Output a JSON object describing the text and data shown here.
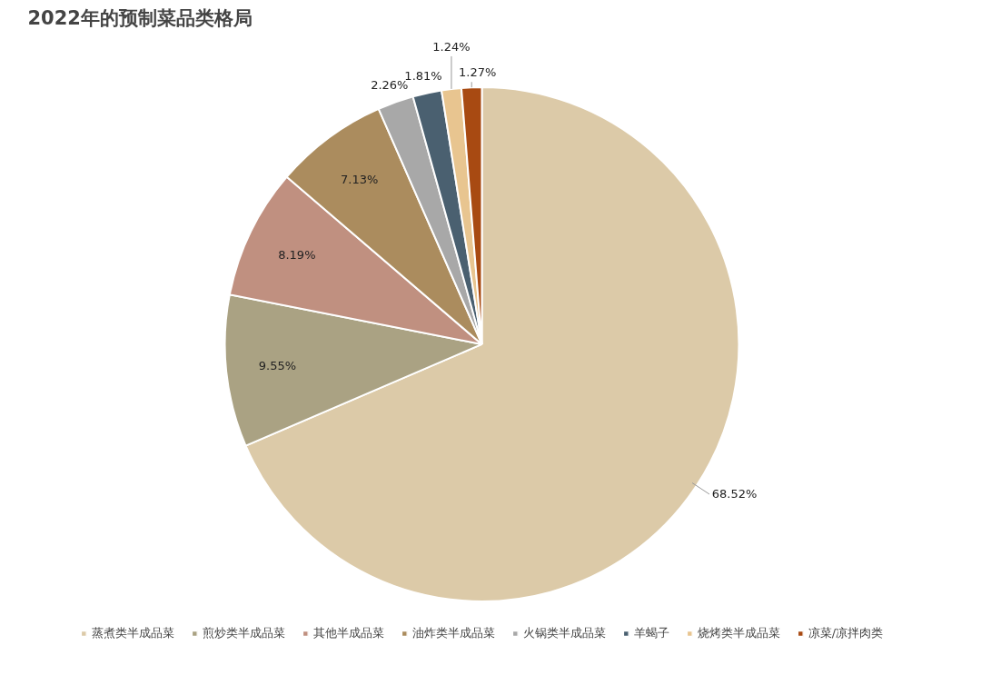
{
  "chart_data": {
    "type": "pie",
    "title": "2022年的预制菜品类格局",
    "categories": [
      "蒸煮类半成品菜",
      "煎炒类半成品菜",
      "其他半成品菜",
      "油炸类半成品菜",
      "火锅类半成品菜",
      "羊蝎子",
      "烧烤类半成品菜",
      "凉菜/凉拌肉类"
    ],
    "values": [
      68.52,
      9.55,
      8.19,
      7.13,
      2.26,
      1.81,
      1.24,
      1.27
    ],
    "colors": [
      "#dccaa8",
      "#aaa283",
      "#c09080",
      "#ab8c5e",
      "#a8a8a8",
      "#4a6070",
      "#e8c590",
      "#a84a12"
    ],
    "value_labels": [
      "68.52%",
      "9.55%",
      "8.19%",
      "7.13%",
      "2.26%",
      "1.81%",
      "1.24%",
      "1.27%"
    ],
    "legend": "bottom"
  }
}
